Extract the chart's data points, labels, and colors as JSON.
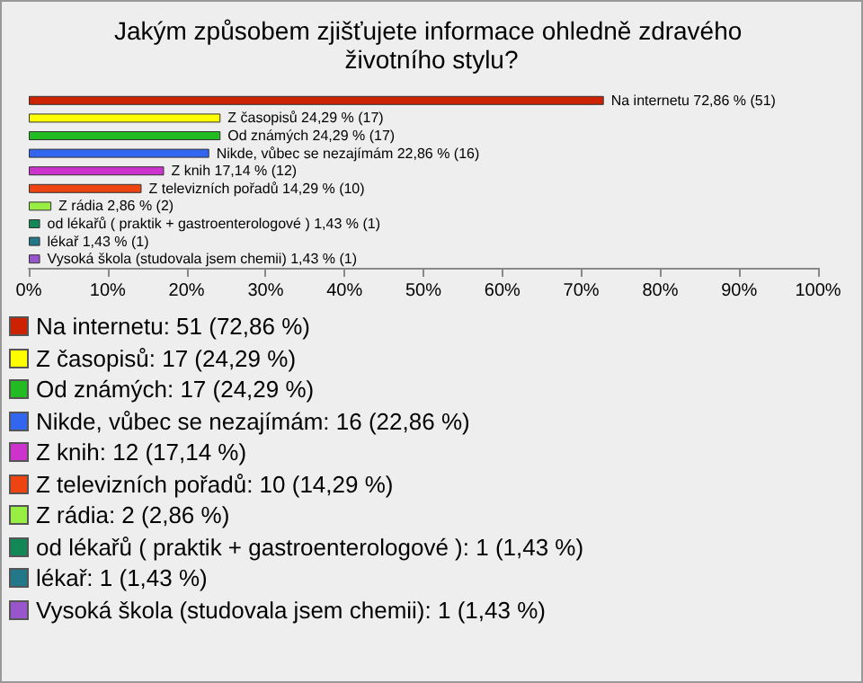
{
  "chart_data": {
    "type": "bar",
    "orientation": "horizontal",
    "title": "Jakým způsobem zjišťujete informace ohledně zdravého životního stylu?",
    "categories": [
      null,
      null,
      null,
      null,
      null,
      null,
      null,
      null,
      null,
      null
    ],
    "values": [
      72.86,
      24.29,
      24.29,
      22.86,
      17.14,
      14.29,
      2.86,
      1.43,
      1.43,
      1.43
    ],
    "colors": [
      "#cc2200",
      "#ffff00",
      "#22bb22",
      "#3366ee",
      "#cc33cc",
      "#ee4411",
      "#99ee44",
      "#118855",
      "#227788",
      "#9955cc"
    ],
    "value_labels": [
      "Na internetu 72,86 % (51)",
      "Z časopisů 24,29 % (17)",
      "Od známých 24,29 % (17)",
      "Nikde, vůbec se nezajímám 22,86 % (16)",
      "Z knih 17,14 % (12)",
      "Z televizních pořadů 14,29 % (10)",
      "Z rádia 2,86 % (2)",
      "od lékařů ( praktik + gastroenterologové ) 1,43 % (1)",
      "lékař 1,43 % (1)",
      "Vysoká škola (studovala jsem chemii) 1,43 % (1)"
    ],
    "xlim": [
      0,
      100
    ],
    "xticks": [
      {
        "value": 0,
        "label": "0%"
      },
      {
        "value": 10,
        "label": "10%"
      },
      {
        "value": 20,
        "label": "20%"
      },
      {
        "value": 30,
        "label": "30%"
      },
      {
        "value": 40,
        "label": "40%"
      },
      {
        "value": 50,
        "label": "50%"
      },
      {
        "value": 60,
        "label": "60%"
      },
      {
        "value": 70,
        "label": "70%"
      },
      {
        "value": 80,
        "label": "80%"
      },
      {
        "value": 90,
        "label": "90%"
      },
      {
        "value": 100,
        "label": "100%"
      }
    ],
    "tick_labels": "x",
    "grid": false,
    "annotations": [
      "Na internetu: 51 (72,86 %)",
      "Z časopisů: 17 (24,29 %)",
      "Od známých: 17 (24,29 %)",
      "Nikde, vůbec se nezajímám: 16 (22,86 %)",
      "Z knih: 12 (17,14 %)",
      "Z televizních pořadů: 10 (14,29 %)",
      "Z rádia: 2 (2,86 %)",
      "od lékařů ( praktik + gastroenterologové ): 1 (1,43 %)",
      "lékař: 1 (1,43 %)",
      "Vysoká škola (studovala jsem chemii): 1 (1,43 %)"
    ]
  }
}
